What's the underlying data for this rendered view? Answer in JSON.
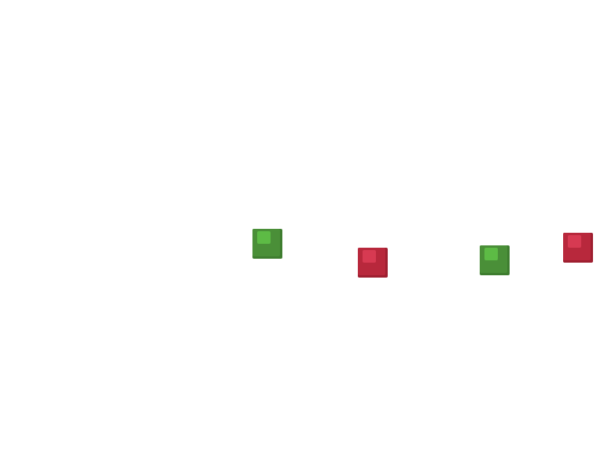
{
  "game": {
    "background": "#ffffff",
    "blocks": [
      {
        "id": "block-1",
        "color": "green"
      },
      {
        "id": "block-2",
        "color": "red"
      },
      {
        "id": "block-3",
        "color": "green"
      },
      {
        "id": "block-4",
        "color": "red"
      }
    ]
  },
  "palette": {
    "green": {
      "base": "#3e7d2f",
      "face": "#4a8f38",
      "shine": "#5dbb45"
    },
    "red": {
      "base": "#9e1f30",
      "face": "#b8283c",
      "shine": "#d73a52"
    }
  }
}
